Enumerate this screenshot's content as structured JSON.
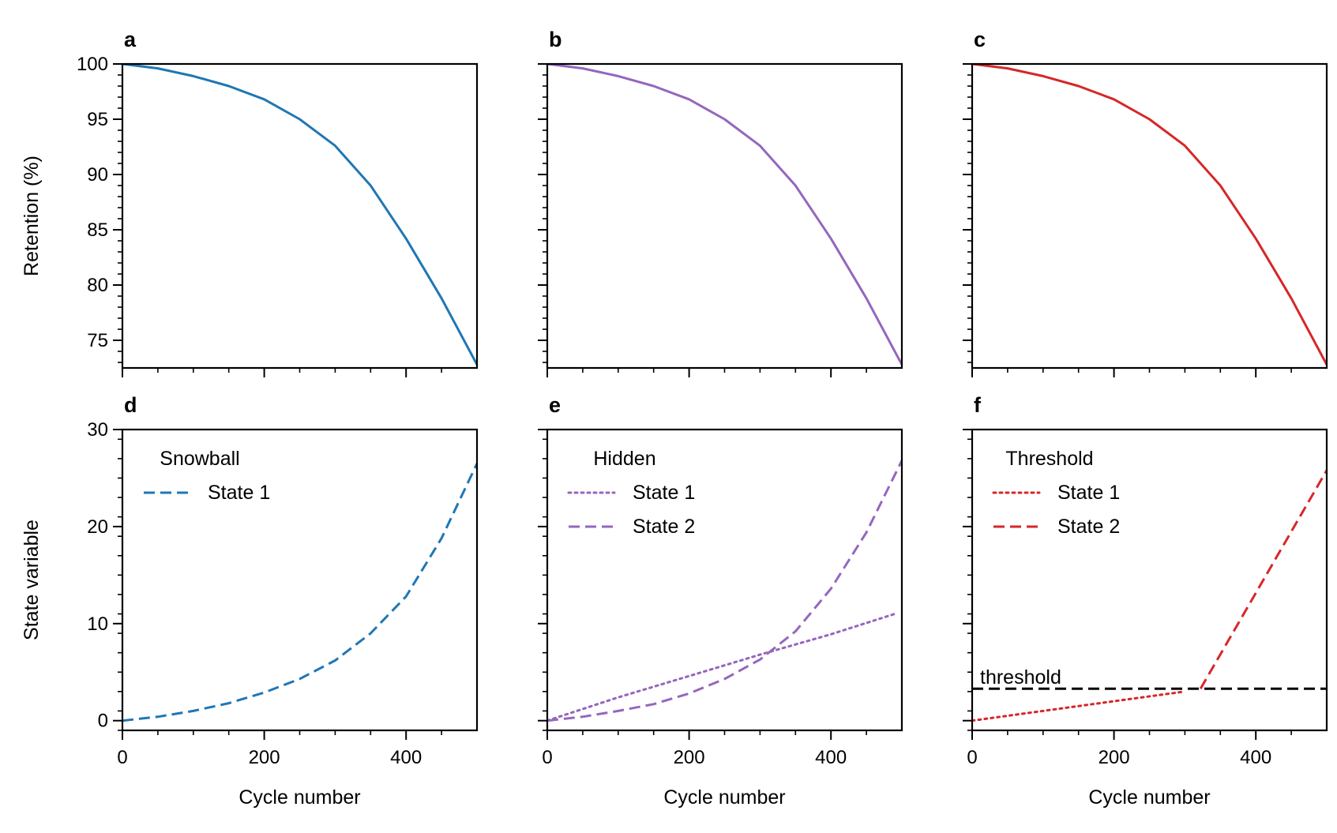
{
  "colors": {
    "blue": "#1f77b4",
    "purple": "#9467bd",
    "red": "#d62728",
    "black": "#000000"
  },
  "labels": {
    "xlabel": "Cycle number",
    "ylabel_top": "Retention (%)",
    "ylabel_bottom": "State variable"
  },
  "ticks": {
    "x": [
      0,
      200,
      400
    ],
    "x_labels": [
      "0",
      "200",
      "400"
    ],
    "y_top": [
      75,
      80,
      85,
      90,
      95,
      100
    ],
    "y_top_labels": [
      "75",
      "80",
      "85",
      "90",
      "95",
      "100"
    ],
    "y_bottom": [
      0,
      10,
      20,
      30
    ],
    "y_bottom_labels": [
      "0",
      "10",
      "20",
      "30"
    ]
  },
  "chart_data": [
    {
      "type": "line",
      "panel": "a",
      "xlim": [
        0,
        500
      ],
      "ylim": [
        72.5,
        100
      ],
      "series": [
        {
          "name": "Retention",
          "style": "solid",
          "color": "#1f77b4",
          "x": [
            0,
            50,
            100,
            150,
            200,
            250,
            300,
            350,
            400,
            450,
            500
          ],
          "y": [
            100,
            99.6,
            98.9,
            98.0,
            96.8,
            95.0,
            92.6,
            89.0,
            84.2,
            78.8,
            72.8
          ]
        }
      ]
    },
    {
      "type": "line",
      "panel": "b",
      "xlim": [
        0,
        500
      ],
      "ylim": [
        72.5,
        100
      ],
      "series": [
        {
          "name": "Retention",
          "style": "solid",
          "color": "#9467bd",
          "x": [
            0,
            50,
            100,
            150,
            200,
            250,
            300,
            350,
            400,
            450,
            500
          ],
          "y": [
            100,
            99.6,
            98.9,
            98.0,
            96.8,
            95.0,
            92.6,
            89.0,
            84.2,
            78.8,
            72.8
          ]
        }
      ]
    },
    {
      "type": "line",
      "panel": "c",
      "xlim": [
        0,
        500
      ],
      "ylim": [
        72.5,
        100
      ],
      "series": [
        {
          "name": "Retention",
          "style": "solid",
          "color": "#d62728",
          "x": [
            0,
            50,
            100,
            150,
            200,
            250,
            300,
            350,
            400,
            450,
            500
          ],
          "y": [
            100,
            99.6,
            98.9,
            98.0,
            96.8,
            95.0,
            92.6,
            89.0,
            84.2,
            78.8,
            72.8
          ]
        }
      ]
    },
    {
      "type": "line",
      "panel": "d",
      "xlim": [
        0,
        500
      ],
      "ylim": [
        -1,
        30
      ],
      "legend_title": "Snowball",
      "legend_loc": "upper-left",
      "series": [
        {
          "name": "State 1",
          "style": "dashed",
          "color": "#1f77b4",
          "x": [
            0,
            50,
            100,
            150,
            200,
            250,
            300,
            350,
            400,
            450,
            500
          ],
          "y": [
            0,
            0.4,
            1.0,
            1.8,
            2.9,
            4.3,
            6.2,
            9.0,
            12.8,
            18.8,
            26.5
          ]
        }
      ]
    },
    {
      "type": "line",
      "panel": "e",
      "xlim": [
        0,
        500
      ],
      "ylim": [
        -1,
        30
      ],
      "legend_title": "Hidden",
      "legend_loc": "upper-left",
      "series": [
        {
          "name": "State 1",
          "style": "dotted",
          "color": "#9467bd",
          "x": [
            0,
            100,
            200,
            300,
            400,
            490
          ],
          "y": [
            0,
            2.4,
            4.6,
            6.8,
            8.9,
            11.0
          ]
        },
        {
          "name": "State 2",
          "style": "dashed",
          "color": "#9467bd",
          "x": [
            0,
            50,
            100,
            150,
            200,
            250,
            300,
            350,
            400,
            450,
            500
          ],
          "y": [
            0,
            0.4,
            1.0,
            1.7,
            2.8,
            4.3,
            6.3,
            9.2,
            13.6,
            19.4,
            26.8
          ]
        }
      ]
    },
    {
      "type": "line",
      "panel": "f",
      "xlim": [
        0,
        500
      ],
      "ylim": [
        -1,
        30
      ],
      "legend_title": "Threshold",
      "legend_loc": "upper-left",
      "annotation": {
        "text": "threshold",
        "value": 3.3
      },
      "series": [
        {
          "name": "State 1",
          "style": "dotted",
          "color": "#d62728",
          "x": [
            0,
            300
          ],
          "y": [
            0,
            3.0
          ]
        },
        {
          "name": "State 2",
          "style": "dashed",
          "color": "#d62728",
          "x": [
            322,
            500
          ],
          "y": [
            3.3,
            25.8
          ]
        },
        {
          "name": "threshold",
          "style": "dashed",
          "color": "#000000",
          "x": [
            0,
            500
          ],
          "y": [
            3.3,
            3.3
          ],
          "in_legend": false
        }
      ]
    }
  ]
}
